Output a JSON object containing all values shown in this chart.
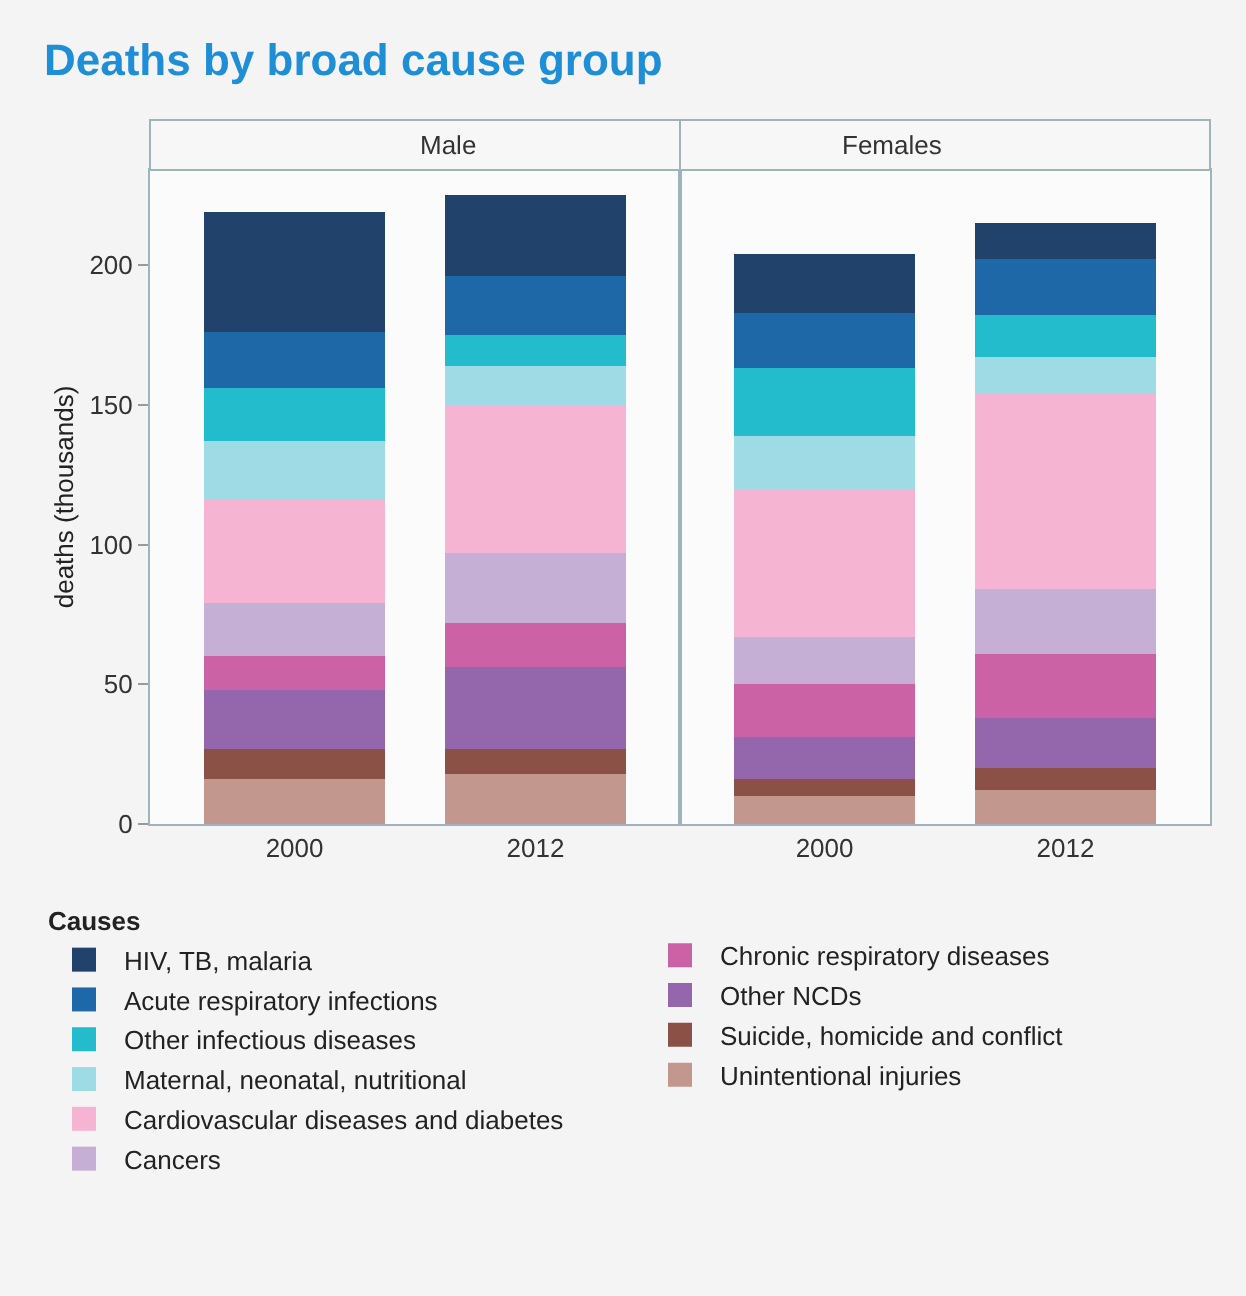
{
  "chart_data": [
    {
      "type": "bar",
      "title": "Deaths by broad cause group",
      "subtitle": "Male",
      "ylabel": "deaths (thousands)",
      "legend_title": "Causes",
      "legend": "bottom",
      "stacked": true,
      "categories": [
        "2000",
        "2012"
      ],
      "ylim": [
        0,
        234
      ],
      "yticks": [
        0,
        50,
        100,
        150,
        200
      ],
      "series": [
        {
          "name": "Unintentional injuries",
          "color": "#c2978e",
          "values": [
            16,
            18
          ]
        },
        {
          "name": "Suicide, homicide and conflict",
          "color": "#8c5146",
          "values": [
            11,
            9
          ]
        },
        {
          "name": "Other NCDs",
          "color": "#9466ab",
          "values": [
            21,
            29
          ]
        },
        {
          "name": "Chronic respiratory diseases",
          "color": "#cc62a6",
          "values": [
            12,
            16
          ]
        },
        {
          "name": "Cancers",
          "color": "#c5afd5",
          "values": [
            19,
            25
          ]
        },
        {
          "name": "Cardiovascular diseases and diabetes",
          "color": "#f5b5d2",
          "values": [
            37,
            53
          ]
        },
        {
          "name": "Maternal, neonatal, nutritional",
          "color": "#9fdbe5",
          "values": [
            21,
            14
          ]
        },
        {
          "name": "Other infectious diseases",
          "color": "#22bccc",
          "values": [
            19,
            11
          ]
        },
        {
          "name": "Acute respiratory infections",
          "color": "#1f68a8",
          "values": [
            20,
            21
          ]
        },
        {
          "name": "HIV, TB, malaria",
          "color": "#21436b",
          "values": [
            43,
            29
          ]
        }
      ]
    },
    {
      "type": "bar",
      "subtitle": "Females",
      "stacked": true,
      "categories": [
        "2000",
        "2012"
      ],
      "ylim": [
        0,
        234
      ],
      "tick_labels": "x",
      "series": [
        {
          "color": "#c2978e",
          "values": [
            10,
            12
          ]
        },
        {
          "color": "#8c5146",
          "values": [
            6,
            8
          ]
        },
        {
          "color": "#9466ab",
          "values": [
            15,
            18
          ]
        },
        {
          "color": "#cc62a6",
          "values": [
            19,
            23
          ]
        },
        {
          "color": "#c5afd5",
          "values": [
            17,
            23
          ]
        },
        {
          "color": "#f5b5d2",
          "values": [
            53,
            70
          ]
        },
        {
          "color": "#9fdbe5",
          "values": [
            19,
            13
          ]
        },
        {
          "color": "#22bccc",
          "values": [
            24,
            15
          ]
        },
        {
          "color": "#1f68a8",
          "values": [
            20,
            20
          ]
        },
        {
          "color": "#21436b",
          "values": [
            21,
            13
          ]
        }
      ]
    }
  ]
}
